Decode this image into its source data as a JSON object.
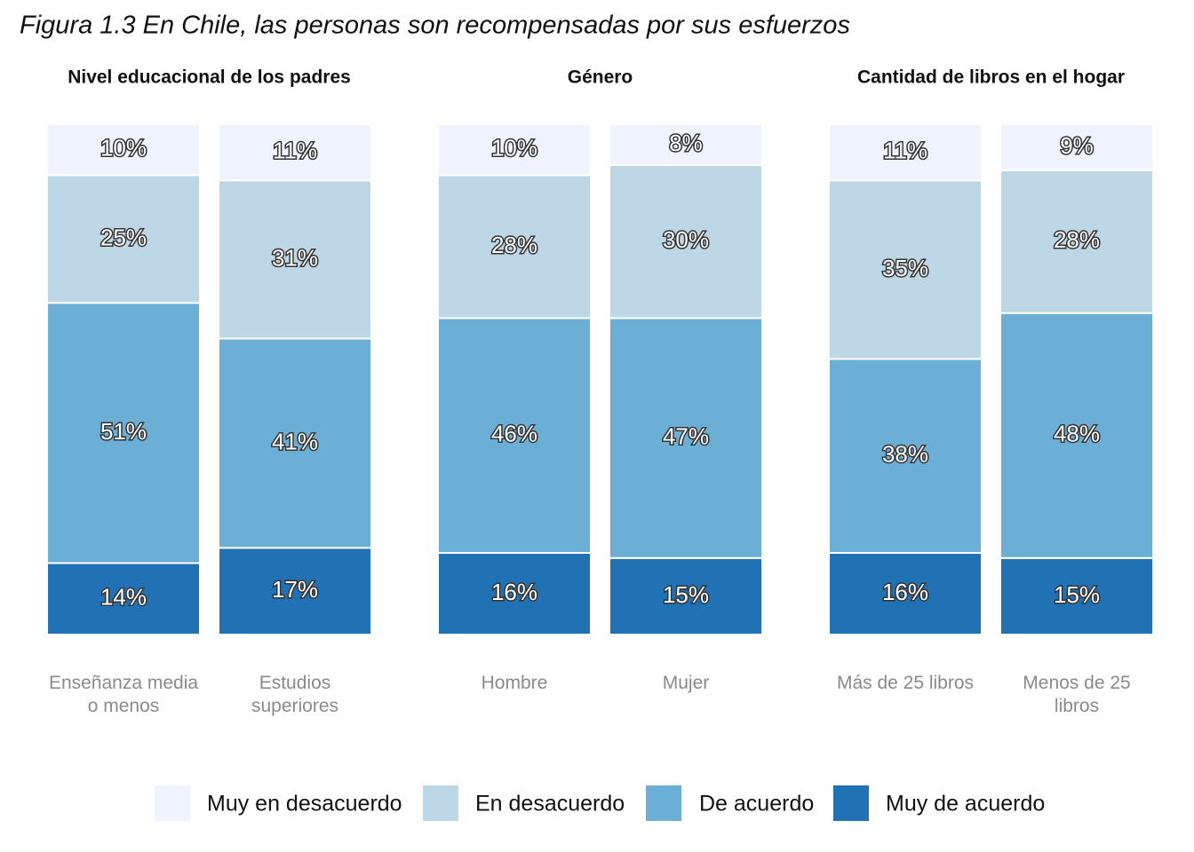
{
  "title": "Figura 1.3 En Chile, las personas son recompensadas por sus esfuerzos",
  "chart_data": [
    {
      "type": "bar",
      "stacked": true,
      "title": "Nivel educacional de los padres",
      "categories": [
        "Enseñanza media o menos",
        "Estudios superiores"
      ],
      "series": [
        {
          "name": "Muy en desacuerdo",
          "color": "#eff3ff",
          "values": [
            10,
            11
          ],
          "value_labels": [
            "10%",
            "11%"
          ]
        },
        {
          "name": "En desacuerdo",
          "color": "#bdd7e7",
          "values": [
            25,
            31
          ],
          "value_labels": [
            "25%",
            "31%"
          ]
        },
        {
          "name": "De acuerdo",
          "color": "#6baed6",
          "values": [
            51,
            41
          ],
          "value_labels": [
            "51%",
            "41%"
          ]
        },
        {
          "name": "Muy de acuerdo",
          "color": "#2171b5",
          "values": [
            14,
            17
          ],
          "value_labels": [
            "14%",
            "17%"
          ]
        }
      ]
    },
    {
      "type": "bar",
      "stacked": true,
      "title": "Género",
      "categories": [
        "Hombre",
        "Mujer"
      ],
      "series": [
        {
          "name": "Muy en desacuerdo",
          "color": "#eff3ff",
          "values": [
            10,
            8
          ],
          "value_labels": [
            "10%",
            "8%"
          ]
        },
        {
          "name": "En desacuerdo",
          "color": "#bdd7e7",
          "values": [
            28,
            30
          ],
          "value_labels": [
            "28%",
            "30%"
          ]
        },
        {
          "name": "De acuerdo",
          "color": "#6baed6",
          "values": [
            46,
            47
          ],
          "value_labels": [
            "46%",
            "47%"
          ]
        },
        {
          "name": "Muy de acuerdo",
          "color": "#2171b5",
          "values": [
            16,
            15
          ],
          "value_labels": [
            "16%",
            "15%"
          ]
        }
      ]
    },
    {
      "type": "bar",
      "stacked": true,
      "title": "Cantidad de libros en el hogar",
      "categories": [
        "Más de 25 libros",
        "Menos de 25 libros"
      ],
      "series": [
        {
          "name": "Muy en desacuerdo",
          "color": "#eff3ff",
          "values": [
            11,
            9
          ],
          "value_labels": [
            "11%",
            "9%"
          ]
        },
        {
          "name": "En desacuerdo",
          "color": "#bdd7e7",
          "values": [
            35,
            28
          ],
          "value_labels": [
            "35%",
            "28%"
          ]
        },
        {
          "name": "De acuerdo",
          "color": "#6baed6",
          "values": [
            38,
            48
          ],
          "value_labels": [
            "38%",
            "48%"
          ]
        },
        {
          "name": "Muy de acuerdo",
          "color": "#2171b5",
          "values": [
            16,
            15
          ],
          "value_labels": [
            "16%",
            "15%"
          ]
        }
      ]
    }
  ]
}
